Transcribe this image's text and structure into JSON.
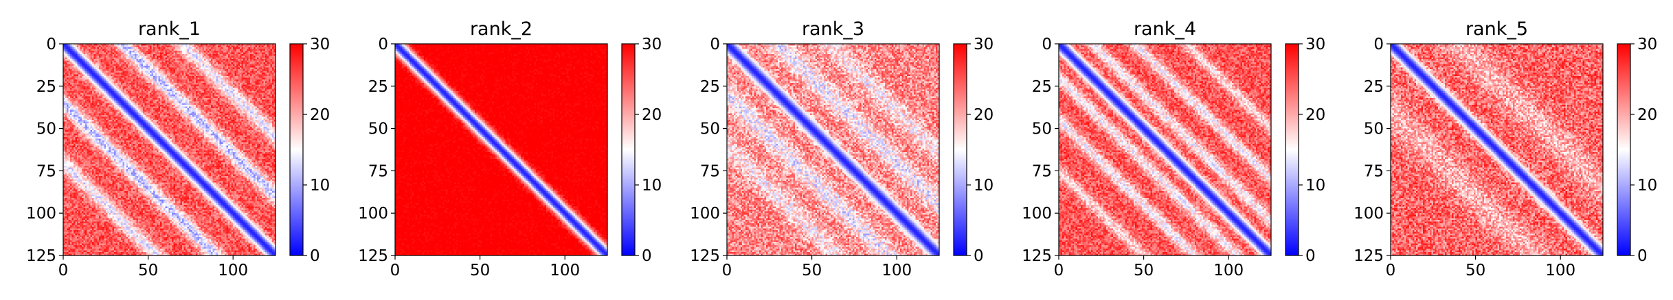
{
  "chart_data": [
    {
      "type": "heatmap",
      "title": "rank_1",
      "xlim": [
        0,
        125
      ],
      "ylim": [
        125,
        0
      ],
      "x_ticks": [
        0,
        50,
        100
      ],
      "y_ticks": [
        0,
        25,
        50,
        75,
        100,
        125
      ],
      "colorbar": {
        "min": 0,
        "max": 30,
        "ticks": [
          0,
          10,
          20,
          30
        ],
        "colormap": "bwr"
      },
      "pattern": {
        "diagonal_low": 2,
        "offdiag_base": 25,
        "bands": [
          {
            "offset": 35,
            "depth": 14,
            "width": 6
          },
          {
            "offset": 70,
            "depth": 11,
            "width": 6
          }
        ],
        "noise": 4
      }
    },
    {
      "type": "heatmap",
      "title": "rank_2",
      "xlim": [
        0,
        125
      ],
      "ylim": [
        125,
        0
      ],
      "x_ticks": [
        0,
        50,
        100
      ],
      "y_ticks": [
        0,
        25,
        50,
        75,
        100,
        125
      ],
      "colorbar": {
        "min": 0,
        "max": 30,
        "ticks": [
          0,
          10,
          20,
          30
        ],
        "colormap": "bwr"
      },
      "pattern": {
        "diagonal_low": 2,
        "offdiag_base": 31,
        "bands": [],
        "noise": 2
      }
    },
    {
      "type": "heatmap",
      "title": "rank_3",
      "xlim": [
        0,
        125
      ],
      "ylim": [
        125,
        0
      ],
      "x_ticks": [
        0,
        50,
        100
      ],
      "y_ticks": [
        0,
        25,
        50,
        75,
        100,
        125
      ],
      "colorbar": {
        "min": 0,
        "max": 30,
        "ticks": [
          0,
          10,
          20,
          30
        ],
        "colormap": "bwr"
      },
      "pattern": {
        "diagonal_low": 2,
        "offdiag_base": 22,
        "bands": [
          {
            "offset": 30,
            "depth": 8,
            "width": 8
          },
          {
            "offset": 60,
            "depth": 6,
            "width": 8
          }
        ],
        "noise": 5
      }
    },
    {
      "type": "heatmap",
      "title": "rank_4",
      "xlim": [
        0,
        125
      ],
      "ylim": [
        125,
        0
      ],
      "x_ticks": [
        0,
        50,
        100
      ],
      "y_ticks": [
        0,
        25,
        50,
        75,
        100,
        125
      ],
      "colorbar": {
        "min": 0,
        "max": 30,
        "ticks": [
          0,
          10,
          20,
          30
        ],
        "colormap": "bwr"
      },
      "pattern": {
        "diagonal_low": 2,
        "offdiag_base": 25,
        "bands": [
          {
            "offset": 20,
            "depth": 10,
            "width": 5
          },
          {
            "offset": 45,
            "depth": 10,
            "width": 5
          },
          {
            "offset": 75,
            "depth": 8,
            "width": 5
          }
        ],
        "noise": 4
      }
    },
    {
      "type": "heatmap",
      "title": "rank_5",
      "xlim": [
        0,
        125
      ],
      "ylim": [
        125,
        0
      ],
      "x_ticks": [
        0,
        50,
        100
      ],
      "y_ticks": [
        0,
        25,
        50,
        75,
        100,
        125
      ],
      "colorbar": {
        "min": 0,
        "max": 30,
        "ticks": [
          0,
          10,
          20,
          30
        ],
        "colormap": "bwr"
      },
      "pattern": {
        "diagonal_low": 2,
        "offdiag_base": 24,
        "bands": [
          {
            "offset": 40,
            "depth": 5,
            "width": 12
          }
        ],
        "noise": 5
      }
    }
  ]
}
